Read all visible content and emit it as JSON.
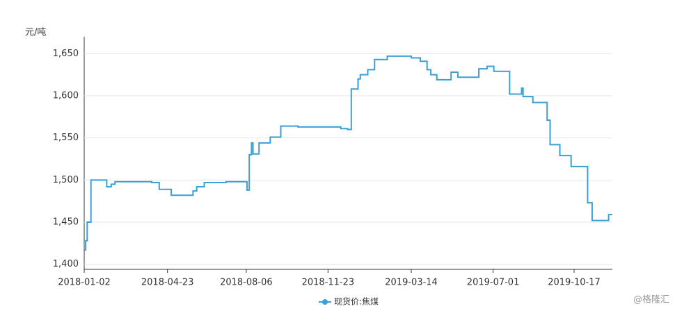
{
  "chart_data": {
    "type": "line",
    "step": "after",
    "y_unit": "元/吨",
    "watermark": "@格隆汇",
    "legend": "bottom",
    "grid": true,
    "xlim": [
      "2018-01-02",
      "2019-12-07"
    ],
    "xticks": [
      "2018-01-02",
      "2018-04-23",
      "2018-08-06",
      "2018-11-23",
      "2019-03-14",
      "2019-07-01",
      "2019-10-17"
    ],
    "ylim": [
      1394,
      1670
    ],
    "yticks": [
      {
        "value": 1400,
        "label": "1,400"
      },
      {
        "value": 1450,
        "label": "1,450"
      },
      {
        "value": 1500,
        "label": "1,500"
      },
      {
        "value": 1550,
        "label": "1,550"
      },
      {
        "value": 1600,
        "label": "1,600"
      },
      {
        "value": 1650,
        "label": "1,650"
      }
    ],
    "series": [
      {
        "name": "现货价:焦煤",
        "color": "#3a9fd6",
        "x": [
          "2018-01-02",
          "2018-01-04",
          "2018-01-06",
          "2018-01-11",
          "2018-02-01",
          "2018-02-07",
          "2018-02-12",
          "2018-04-02",
          "2018-04-12",
          "2018-04-28",
          "2018-05-27",
          "2018-06-01",
          "2018-06-11",
          "2018-07-10",
          "2018-08-07",
          "2018-08-10",
          "2018-08-13",
          "2018-08-15",
          "2018-08-23",
          "2018-09-07",
          "2018-09-21",
          "2018-10-14",
          "2018-12-10",
          "2018-12-19",
          "2018-12-24",
          "2019-01-02",
          "2019-01-05",
          "2019-01-15",
          "2019-01-24",
          "2019-02-10",
          "2019-03-14",
          "2019-03-26",
          "2019-04-04",
          "2019-04-09",
          "2019-04-17",
          "2019-05-06",
          "2019-05-15",
          "2019-06-12",
          "2019-06-23",
          "2019-07-02",
          "2019-07-23",
          "2019-08-08",
          "2019-08-10",
          "2019-08-23",
          "2019-09-11",
          "2019-09-15",
          "2019-09-28",
          "2019-10-13",
          "2019-11-04",
          "2019-11-10",
          "2019-12-02",
          "2019-12-07"
        ],
        "values": [
          1417,
          1428,
          1450,
          1500,
          1492,
          1495,
          1498,
          1497,
          1489,
          1482,
          1487,
          1492,
          1497,
          1498,
          1488,
          1530,
          1544,
          1531,
          1544,
          1551,
          1564,
          1563,
          1561,
          1560,
          1608,
          1620,
          1625,
          1631,
          1643,
          1647,
          1645,
          1641,
          1631,
          1625,
          1619,
          1628,
          1622,
          1632,
          1635,
          1629,
          1602,
          1609,
          1599,
          1592,
          1571,
          1542,
          1529,
          1516,
          1473,
          1452,
          1459,
          1459
        ]
      }
    ]
  }
}
